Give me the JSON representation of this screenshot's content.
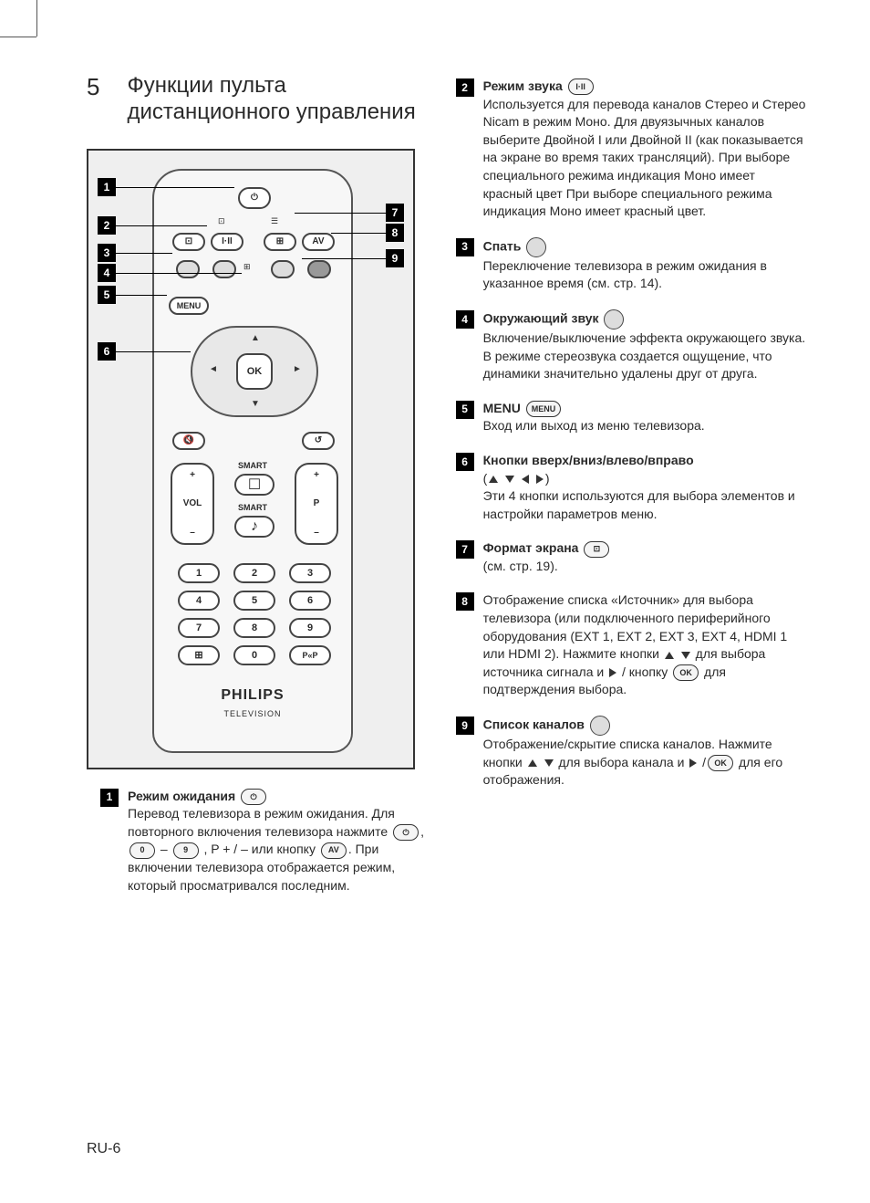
{
  "section_number": "5",
  "section_title": "Функции пульта дистанционного управления",
  "footer": "RU-6",
  "remote": {
    "ok": "OK",
    "menu": "MENU",
    "av": "AV",
    "i_ii": "I·II",
    "vol": "VOL",
    "p": "P",
    "smart": "SMART",
    "brand": "PHILIPS",
    "brand_sub": "TELEVISION",
    "nums": [
      "1",
      "2",
      "3",
      "4",
      "5",
      "6",
      "7",
      "8",
      "9",
      "0"
    ],
    "pp": "P«P"
  },
  "items_left": [
    {
      "n": "1",
      "title": "Режим ожидания",
      "icon": "power",
      "body_parts": [
        "Перевод телевизора в режим ожидания. Для повторного включения телевизора нажмите ",
        {
          "btn": "⏻"
        },
        ", ",
        {
          "btn": "0"
        },
        " – ",
        {
          "btn": "9"
        },
        " , P + / – или кнопку ",
        {
          "btn": "AV"
        },
        ".",
        " При включении телевизора отображается режим, который просматривался последним."
      ]
    }
  ],
  "items_right": [
    {
      "n": "2",
      "title": "Режим звука",
      "icon_label": "I·II",
      "body": "Используется для перевода каналов Стерео и Стерео Nicam в режим Моно. Для двуязычных каналов выберите Двойной I или Двойной II (как показывается на экране во время таких трансляций). При выборе специального режима индикация Моно имеет красный цвет При выборе специального режима индикация Моно имеет красный цвет."
    },
    {
      "n": "3",
      "title": "Спать",
      "icon_round": true,
      "body": "Переключение телевизора в режим ожидания в указанное время (см. стр. 14)."
    },
    {
      "n": "4",
      "title": "Окружающий звук",
      "icon_round": true,
      "body": "Включение/выключение эффекта окружающего звука. В режиме стереозвука создается ощущение, что динамики значительно удалены друг от друга."
    },
    {
      "n": "5",
      "title": "MENU",
      "icon_label": "MENU",
      "body": "Вход или выход из меню телевизора."
    },
    {
      "n": "6",
      "title": "Кнопки вверх/вниз/влево/вправо",
      "arrows": true,
      "body": "Эти 4 кнопки используются для выбора элементов и настройки параметров меню."
    },
    {
      "n": "7",
      "title": "Формат экрана",
      "icon_label": "⊡",
      "body": "(см. стр. 19)."
    },
    {
      "n": "8",
      "title": "",
      "body_parts": [
        "Отображение списка «Источник» для выбора телевизора (или подключенного периферийного оборудования (EXT 1, EXT 2, EXT 3, EXT 4, HDMI 1 или HDMI 2). Нажмите кнопки ",
        {
          "tri": "up"
        },
        " ",
        {
          "tri": "down"
        },
        "  для выбора источника сигнала и ",
        {
          "tri": "right"
        },
        " / кнопку ",
        {
          "btn": "OK"
        },
        " для подтверждения выбора."
      ]
    },
    {
      "n": "9",
      "title": "Список каналов",
      "icon_round": true,
      "body_parts": [
        "Отображение/скрытие списка каналов. Нажмите кнопки ",
        {
          "tri": "up"
        },
        " ",
        {
          "tri": "down"
        },
        "  для выбора канала и ",
        {
          "tri": "right"
        },
        " /",
        {
          "btn": "OK"
        },
        " для его отображения."
      ]
    }
  ]
}
